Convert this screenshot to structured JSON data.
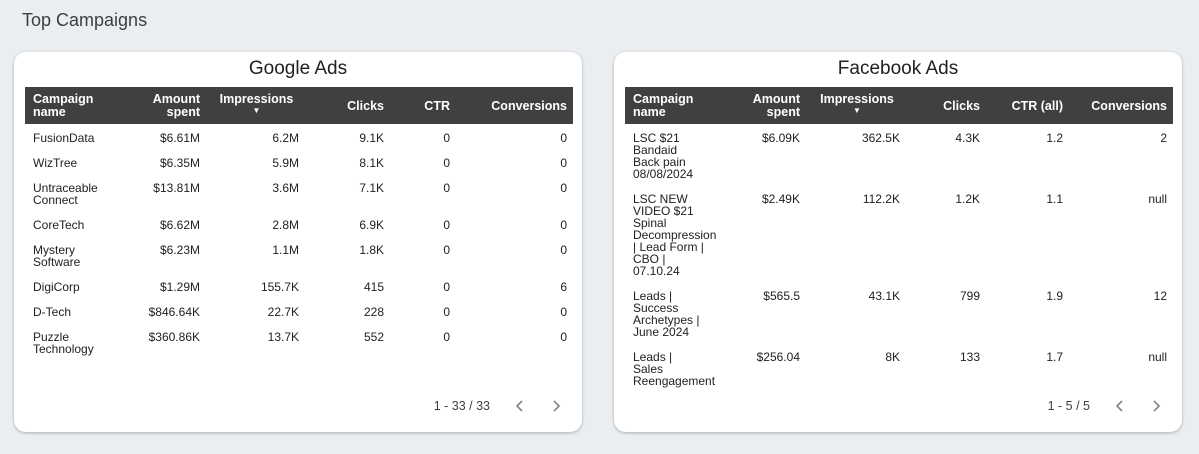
{
  "page_title": "Top Campaigns",
  "google": {
    "title": "Google Ads",
    "headers": {
      "name": "Campaign name",
      "amount": "Amount spent",
      "impressions": "Impressions",
      "clicks": "Clicks",
      "ctr": "CTR",
      "conversions": "Conversions"
    },
    "rows": [
      {
        "name": "FusionData",
        "amount": "$6.61M",
        "impressions": "6.2M",
        "clicks": "9.1K",
        "ctr": "0",
        "conversions": "0"
      },
      {
        "name": "WizTree",
        "amount": "$6.35M",
        "impressions": "5.9M",
        "clicks": "8.1K",
        "ctr": "0",
        "conversions": "0"
      },
      {
        "name": "Untraceable Connect",
        "amount": "$13.81M",
        "impressions": "3.6M",
        "clicks": "7.1K",
        "ctr": "0",
        "conversions": "0"
      },
      {
        "name": "CoreTech",
        "amount": "$6.62M",
        "impressions": "2.8M",
        "clicks": "6.9K",
        "ctr": "0",
        "conversions": "0"
      },
      {
        "name": "Mystery Software",
        "amount": "$6.23M",
        "impressions": "1.1M",
        "clicks": "1.8K",
        "ctr": "0",
        "conversions": "0"
      },
      {
        "name": "DigiCorp",
        "amount": "$1.29M",
        "impressions": "155.7K",
        "clicks": "415",
        "ctr": "0",
        "conversions": "6"
      },
      {
        "name": "D-Tech",
        "amount": "$846.64K",
        "impressions": "22.7K",
        "clicks": "228",
        "ctr": "0",
        "conversions": "0"
      },
      {
        "name": "Puzzle Technology",
        "amount": "$360.86K",
        "impressions": "13.7K",
        "clicks": "552",
        "ctr": "0",
        "conversions": "0"
      }
    ],
    "pagination": "1 - 33 / 33"
  },
  "facebook": {
    "title": "Facebook Ads",
    "headers": {
      "name": "Campaign name",
      "amount": "Amount spent",
      "impressions": "Impressions",
      "clicks": "Clicks",
      "ctr": "CTR (all)",
      "conversions": "Conversions"
    },
    "rows": [
      {
        "name": "LSC $21 Bandaid Back pain 08/08/2024",
        "amount": "$6.09K",
        "impressions": "362.5K",
        "clicks": "4.3K",
        "ctr": "1.2",
        "conversions": "2"
      },
      {
        "name": "LSC NEW VIDEO $21 Spinal Decompression | Lead Form | CBO | 07.10.24",
        "amount": "$2.49K",
        "impressions": "112.2K",
        "clicks": "1.2K",
        "ctr": "1.1",
        "conversions": "null"
      },
      {
        "name": "Leads | Success Archetypes | June 2024",
        "amount": "$565.5",
        "impressions": "43.1K",
        "clicks": "799",
        "ctr": "1.9",
        "conversions": "12"
      },
      {
        "name": "Leads | Sales Reengagement",
        "amount": "$256.04",
        "impressions": "8K",
        "clicks": "133",
        "ctr": "1.7",
        "conversions": "null"
      }
    ],
    "pagination": "1 - 5 / 5"
  }
}
